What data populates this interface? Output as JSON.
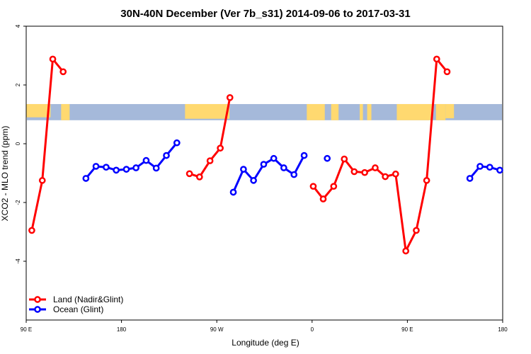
{
  "chart_data": {
    "type": "line",
    "title": "30N-40N December (Ver 7b_s31)   2014-09-06 to 2017-03-31",
    "xlabel": "Longitude (deg E)",
    "ylabel": "XCO2 - MLO trend (ppm)",
    "xlim": [
      90,
      540
    ],
    "ylim": [
      -6,
      4
    ],
    "x_ticks": [
      {
        "value": 90,
        "label": "90 E"
      },
      {
        "value": 180,
        "label": "180"
      },
      {
        "value": 270,
        "label": "90 W"
      },
      {
        "value": 360,
        "label": "0"
      },
      {
        "value": 450,
        "label": "90 E"
      },
      {
        "value": 540,
        "label": "180"
      }
    ],
    "y_ticks": [
      {
        "value": 4,
        "label": "4"
      },
      {
        "value": 2,
        "label": "2"
      },
      {
        "value": 0,
        "label": "0"
      },
      {
        "value": -2,
        "label": "-2"
      },
      {
        "value": -4,
        "label": "-4"
      }
    ],
    "land_band": {
      "y_min": 0.8,
      "y_max": 1.35,
      "land_color": "#FFD970",
      "ocean_color": "#A5B9DA"
    },
    "legend_position": "bottom-left",
    "series": [
      {
        "name": "Land (Nadir&Glint)",
        "color": "#FF0000",
        "segments": [
          [
            [
              95.3,
              -2.95
            ],
            [
              105.2,
              -1.25
            ],
            [
              115.1,
              2.88
            ],
            [
              124.9,
              2.45
            ]
          ],
          [
            [
              244.2,
              -1.02
            ],
            [
              253.7,
              -1.13
            ],
            [
              263.6,
              -0.58
            ],
            [
              273.3,
              -0.15
            ],
            [
              282.4,
              1.57
            ]
          ],
          [
            [
              361.1,
              -1.45
            ],
            [
              370.5,
              -1.88
            ],
            [
              380.4,
              -1.45
            ],
            [
              390.4,
              -0.52
            ],
            [
              399.8,
              -0.95
            ],
            [
              409.7,
              -0.98
            ],
            [
              419.6,
              -0.82
            ],
            [
              429.1,
              -1.12
            ],
            [
              438.9,
              -1.03
            ],
            [
              448.5,
              -3.65
            ],
            [
              458.4,
              -2.95
            ],
            [
              468.2,
              -1.25
            ],
            [
              477.7,
              2.88
            ],
            [
              487.5,
              2.45
            ]
          ]
        ]
      },
      {
        "name": "Ocean (Glint)",
        "color": "#0000FF",
        "segments": [
          [
            [
              146.4,
              -1.18
            ],
            [
              155.9,
              -0.77
            ],
            [
              165.5,
              -0.8
            ],
            [
              175.0,
              -0.9
            ],
            [
              184.6,
              -0.87
            ],
            [
              193.7,
              -0.82
            ],
            [
              203.3,
              -0.57
            ],
            [
              212.8,
              -0.83
            ],
            [
              222.4,
              -0.4
            ],
            [
              232.3,
              0.03
            ]
          ],
          [
            [
              285.6,
              -1.65
            ],
            [
              295.2,
              -0.87
            ],
            [
              304.7,
              -1.25
            ],
            [
              314.3,
              -0.7
            ],
            [
              323.8,
              -0.5
            ],
            [
              333.3,
              -0.82
            ],
            [
              342.9,
              -1.05
            ],
            [
              352.5,
              -0.4
            ]
          ],
          [
            [
              374.3,
              -0.5
            ]
          ],
          [
            [
              509.0,
              -1.18
            ],
            [
              518.6,
              -0.77
            ],
            [
              527.8,
              -0.8
            ],
            [
              537.3,
              -0.9
            ]
          ]
        ]
      }
    ]
  }
}
